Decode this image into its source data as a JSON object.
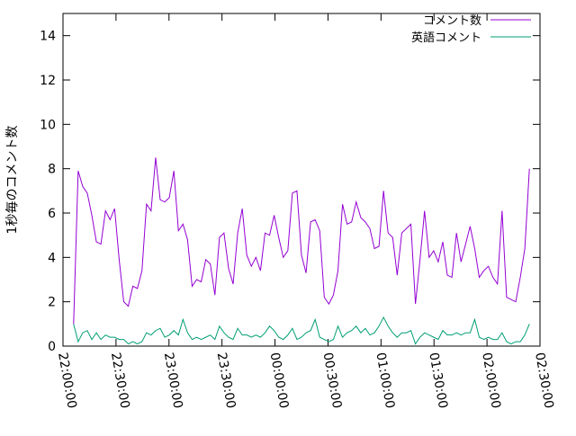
{
  "chart_data": {
    "type": "line",
    "title": "",
    "xlabel": "",
    "ylabel": "1秒毎のコメント数",
    "ylim": [
      0,
      15
    ],
    "yticks": [
      0,
      2,
      4,
      6,
      8,
      10,
      12,
      14
    ],
    "xlim_hours": [
      22.0,
      26.5
    ],
    "xticks": [
      {
        "hours": 22.0,
        "label": "22:00:00"
      },
      {
        "hours": 22.5,
        "label": "22:30:00"
      },
      {
        "hours": 23.0,
        "label": "23:00:00"
      },
      {
        "hours": 23.5,
        "label": "23:30:00"
      },
      {
        "hours": 24.0,
        "label": "00:00:00"
      },
      {
        "hours": 24.5,
        "label": "00:30:00"
      },
      {
        "hours": 25.0,
        "label": "01:00:00"
      },
      {
        "hours": 25.5,
        "label": "01:30:00"
      },
      {
        "hours": 26.0,
        "label": "02:00:00"
      },
      {
        "hours": 26.5,
        "label": "02:30:00"
      }
    ],
    "grid": false,
    "legend_position": "top-right",
    "series": [
      {
        "name": "コメント数",
        "color": "#9400d3",
        "values": [
          1.0,
          7.9,
          7.2,
          6.9,
          5.9,
          4.7,
          4.6,
          6.1,
          5.7,
          6.2,
          3.9,
          2.0,
          1.8,
          2.7,
          2.6,
          3.4,
          6.4,
          6.1,
          8.5,
          6.6,
          6.5,
          6.7,
          7.9,
          5.2,
          5.5,
          4.8,
          2.7,
          3.0,
          2.9,
          3.9,
          3.7,
          2.3,
          4.9,
          5.1,
          3.5,
          2.8,
          5.1,
          6.2,
          4.1,
          3.6,
          4.0,
          3.4,
          5.1,
          5.0,
          5.9,
          4.9,
          4.0,
          4.3,
          6.9,
          7.0,
          4.1,
          3.3,
          5.6,
          5.7,
          5.2,
          2.2,
          1.9,
          2.3,
          3.4,
          6.4,
          5.5,
          5.6,
          6.5,
          5.8,
          5.6,
          5.3,
          4.4,
          4.5,
          7.0,
          5.1,
          4.9,
          3.2,
          5.1,
          5.3,
          5.5,
          1.9,
          3.9,
          6.1,
          4.0,
          4.3,
          3.8,
          4.7,
          3.2,
          3.1,
          5.1,
          3.8,
          4.6,
          5.4,
          4.4,
          3.1,
          3.4,
          3.6,
          3.1,
          2.8,
          6.1,
          2.2,
          2.1,
          2.0,
          3.1,
          4.4,
          8.0
        ]
      },
      {
        "name": "英語コメント",
        "color": "#009e73",
        "values": [
          1.0,
          0.2,
          0.6,
          0.7,
          0.3,
          0.6,
          0.3,
          0.5,
          0.4,
          0.4,
          0.3,
          0.3,
          0.1,
          0.2,
          0.1,
          0.2,
          0.6,
          0.5,
          0.7,
          0.8,
          0.4,
          0.5,
          0.7,
          0.5,
          1.2,
          0.6,
          0.3,
          0.4,
          0.3,
          0.4,
          0.5,
          0.3,
          0.9,
          0.6,
          0.4,
          0.3,
          0.8,
          0.5,
          0.5,
          0.4,
          0.5,
          0.4,
          0.6,
          0.9,
          0.7,
          0.4,
          0.3,
          0.5,
          0.8,
          0.3,
          0.4,
          0.6,
          0.7,
          1.2,
          0.4,
          0.3,
          0.2,
          0.3,
          0.9,
          0.4,
          0.6,
          0.7,
          0.9,
          0.6,
          0.8,
          0.5,
          0.6,
          0.9,
          1.3,
          0.9,
          0.6,
          0.4,
          0.6,
          0.6,
          0.7,
          0.1,
          0.4,
          0.6,
          0.5,
          0.4,
          0.3,
          0.7,
          0.5,
          0.5,
          0.6,
          0.5,
          0.6,
          0.6,
          1.2,
          0.4,
          0.3,
          0.4,
          0.3,
          0.3,
          0.6,
          0.2,
          0.1,
          0.2,
          0.2,
          0.5,
          1.0
        ]
      }
    ]
  }
}
